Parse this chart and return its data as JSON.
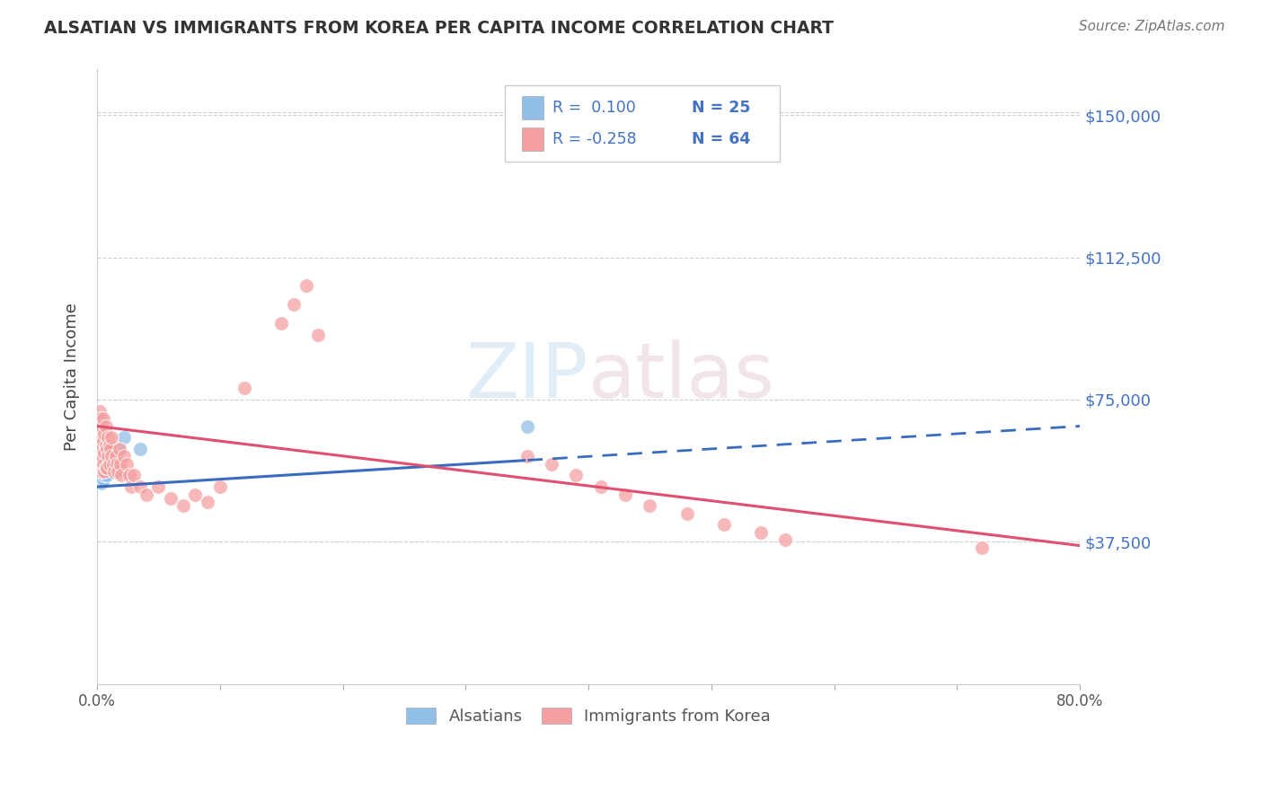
{
  "title": "ALSATIAN VS IMMIGRANTS FROM KOREA PER CAPITA INCOME CORRELATION CHART",
  "source": "Source: ZipAtlas.com",
  "ylabel": "Per Capita Income",
  "yticks": [
    0,
    37500,
    75000,
    112500,
    150000
  ],
  "ytick_labels": [
    "",
    "$37,500",
    "$75,000",
    "$112,500",
    "$150,000"
  ],
  "ylim": [
    0,
    162000
  ],
  "xlim": [
    0.0,
    0.8
  ],
  "watermark": "ZIPatlas",
  "legend_r1": "R =  0.100",
  "legend_n1": "N = 25",
  "legend_r2": "R = -0.258",
  "legend_n2": "N = 64",
  "legend_label1": "Alsatians",
  "legend_label2": "Immigrants from Korea",
  "blue_color": "#92bfe8",
  "pink_color": "#f4a0a0",
  "trend_blue": "#3a6bbf",
  "trend_pink": "#e05070",
  "label_color": "#4472c4",
  "r_text_color": "#333333",
  "alsatian_x": [
    0.001,
    0.002,
    0.002,
    0.002,
    0.003,
    0.003,
    0.003,
    0.004,
    0.004,
    0.005,
    0.005,
    0.005,
    0.006,
    0.006,
    0.007,
    0.007,
    0.008,
    0.009,
    0.01,
    0.012,
    0.015,
    0.018,
    0.022,
    0.035,
    0.35
  ],
  "alsatian_y": [
    70000,
    65000,
    62000,
    58000,
    68000,
    64000,
    60000,
    57000,
    53000,
    62000,
    58000,
    54000,
    60000,
    55000,
    63000,
    58000,
    55000,
    60000,
    62000,
    60000,
    58000,
    62000,
    65000,
    62000,
    68000
  ],
  "korea_x": [
    0.001,
    0.002,
    0.002,
    0.003,
    0.003,
    0.003,
    0.004,
    0.004,
    0.004,
    0.005,
    0.005,
    0.005,
    0.006,
    0.006,
    0.006,
    0.007,
    0.007,
    0.007,
    0.008,
    0.008,
    0.009,
    0.009,
    0.01,
    0.01,
    0.011,
    0.012,
    0.012,
    0.013,
    0.014,
    0.015,
    0.016,
    0.017,
    0.018,
    0.019,
    0.02,
    0.022,
    0.024,
    0.026,
    0.028,
    0.03,
    0.035,
    0.04,
    0.05,
    0.06,
    0.07,
    0.08,
    0.09,
    0.1,
    0.12,
    0.15,
    0.16,
    0.17,
    0.18,
    0.35,
    0.37,
    0.39,
    0.41,
    0.43,
    0.45,
    0.48,
    0.51,
    0.54,
    0.56,
    0.72
  ],
  "korea_y": [
    68000,
    72000,
    64000,
    70000,
    66000,
    60000,
    68000,
    62000,
    56000,
    70000,
    64000,
    58000,
    66000,
    61000,
    56000,
    68000,
    63000,
    57000,
    62000,
    57000,
    65000,
    60000,
    63000,
    58000,
    62000,
    65000,
    60000,
    58000,
    56000,
    60000,
    58000,
    56000,
    62000,
    58000,
    55000,
    60000,
    58000,
    55000,
    52000,
    55000,
    52000,
    50000,
    52000,
    49000,
    47000,
    50000,
    48000,
    52000,
    78000,
    95000,
    100000,
    105000,
    92000,
    60000,
    58000,
    55000,
    52000,
    50000,
    47000,
    45000,
    42000,
    40000,
    38000,
    36000
  ]
}
